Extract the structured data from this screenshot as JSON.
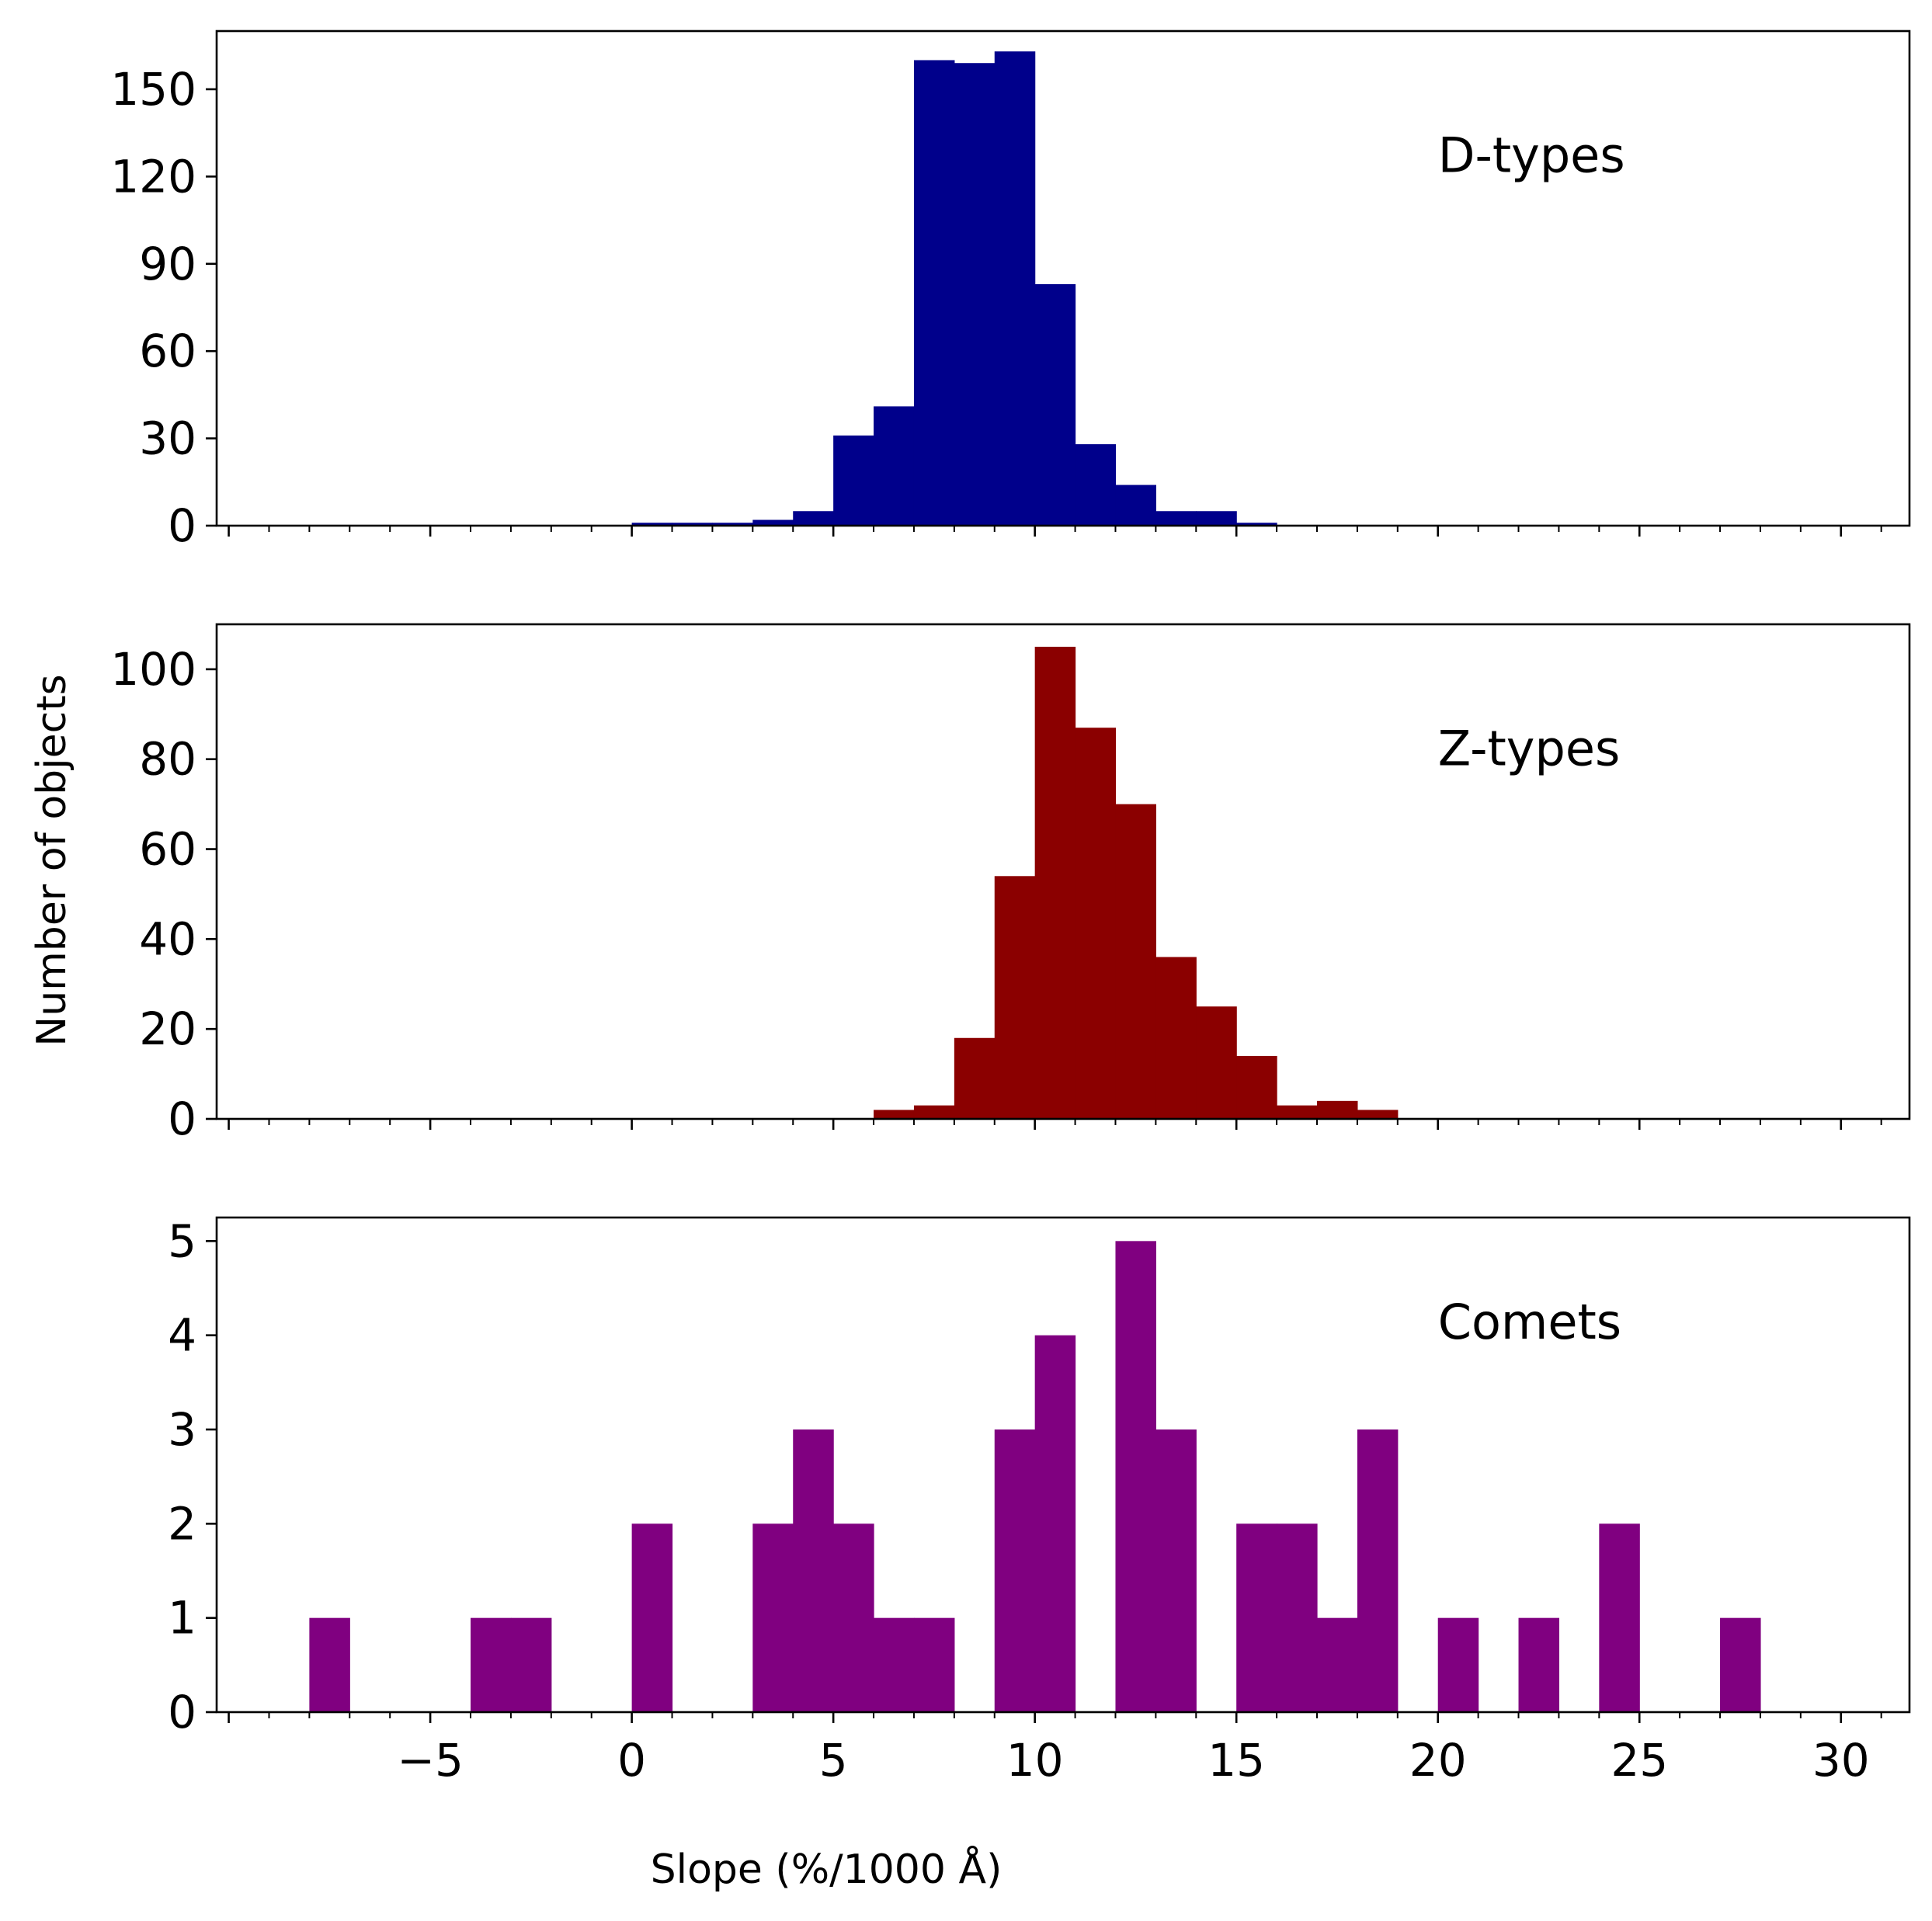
{
  "figure": {
    "ylabel": "Number of objects",
    "xlabel": "Slope (%/1000 Å)"
  },
  "chart_data": [
    {
      "type": "bar",
      "title": "D-types",
      "label": "D-types",
      "color": "#00008b",
      "xlim": [
        -10.3,
        31.7
      ],
      "ylim": [
        0,
        170
      ],
      "yticks": [
        0,
        30,
        60,
        90,
        120,
        150
      ],
      "ytick_labels": [
        "0",
        "30",
        "60",
        "90",
        "120",
        "150"
      ],
      "bins": [
        {
          "x0": 0,
          "x1": 1,
          "count": 1
        },
        {
          "x0": 1,
          "x1": 2,
          "count": 1
        },
        {
          "x0": 2,
          "x1": 3,
          "count": 1
        },
        {
          "x0": 3,
          "x1": 4,
          "count": 2
        },
        {
          "x0": 4,
          "x1": 5,
          "count": 5
        },
        {
          "x0": 5,
          "x1": 6,
          "count": 31
        },
        {
          "x0": 6,
          "x1": 7,
          "count": 41
        },
        {
          "x0": 7,
          "x1": 8,
          "count": 160
        },
        {
          "x0": 8,
          "x1": 9,
          "count": 159
        },
        {
          "x0": 9,
          "x1": 10,
          "count": 163
        },
        {
          "x0": 10,
          "x1": 11,
          "count": 83
        },
        {
          "x0": 11,
          "x1": 12,
          "count": 28
        },
        {
          "x0": 12,
          "x1": 13,
          "count": 14
        },
        {
          "x0": 13,
          "x1": 14,
          "count": 5
        },
        {
          "x0": 14,
          "x1": 15,
          "count": 5
        },
        {
          "x0": 15,
          "x1": 16,
          "count": 1
        }
      ]
    },
    {
      "type": "bar",
      "title": "Z-types",
      "label": "Z-types",
      "color": "#8b0000",
      "xlim": [
        -10.3,
        31.7
      ],
      "ylim": [
        0,
        110
      ],
      "yticks": [
        0,
        20,
        40,
        60,
        80,
        100
      ],
      "ytick_labels": [
        "0",
        "20",
        "40",
        "60",
        "80",
        "100"
      ],
      "bins": [
        {
          "x0": 6,
          "x1": 7,
          "count": 2
        },
        {
          "x0": 7,
          "x1": 8,
          "count": 3
        },
        {
          "x0": 8,
          "x1": 9,
          "count": 18
        },
        {
          "x0": 9,
          "x1": 10,
          "count": 54
        },
        {
          "x0": 10,
          "x1": 11,
          "count": 105
        },
        {
          "x0": 11,
          "x1": 12,
          "count": 87
        },
        {
          "x0": 12,
          "x1": 13,
          "count": 70
        },
        {
          "x0": 13,
          "x1": 14,
          "count": 36
        },
        {
          "x0": 14,
          "x1": 15,
          "count": 25
        },
        {
          "x0": 15,
          "x1": 16,
          "count": 14
        },
        {
          "x0": 16,
          "x1": 17,
          "count": 3
        },
        {
          "x0": 17,
          "x1": 18,
          "count": 4
        },
        {
          "x0": 18,
          "x1": 19,
          "count": 2
        }
      ]
    },
    {
      "type": "bar",
      "title": "Comets",
      "label": "Comets",
      "color": "#800080",
      "xlim": [
        -10.3,
        31.7
      ],
      "ylim": [
        0,
        5.25
      ],
      "yticks": [
        0,
        1,
        2,
        3,
        4,
        5
      ],
      "ytick_labels": [
        "0",
        "1",
        "2",
        "3",
        "4",
        "5"
      ],
      "xticks": [
        -5,
        0,
        5,
        10,
        15,
        20,
        25,
        30
      ],
      "xtick_labels": [
        "−5",
        "0",
        "5",
        "10",
        "15",
        "20",
        "25",
        "30"
      ],
      "bins": [
        {
          "x0": -8,
          "x1": -7,
          "count": 1
        },
        {
          "x0": -4,
          "x1": -3,
          "count": 1
        },
        {
          "x0": -3,
          "x1": -2,
          "count": 1
        },
        {
          "x0": 0,
          "x1": 1,
          "count": 2
        },
        {
          "x0": 3,
          "x1": 4,
          "count": 2
        },
        {
          "x0": 4,
          "x1": 5,
          "count": 3
        },
        {
          "x0": 5,
          "x1": 6,
          "count": 2
        },
        {
          "x0": 6,
          "x1": 7,
          "count": 1
        },
        {
          "x0": 7,
          "x1": 8,
          "count": 1
        },
        {
          "x0": 9,
          "x1": 10,
          "count": 3
        },
        {
          "x0": 10,
          "x1": 11,
          "count": 4
        },
        {
          "x0": 12,
          "x1": 13,
          "count": 5
        },
        {
          "x0": 13,
          "x1": 14,
          "count": 3
        },
        {
          "x0": 15,
          "x1": 16,
          "count": 2
        },
        {
          "x0": 16,
          "x1": 17,
          "count": 2
        },
        {
          "x0": 17,
          "x1": 18,
          "count": 1
        },
        {
          "x0": 18,
          "x1": 19,
          "count": 3
        },
        {
          "x0": 20,
          "x1": 21,
          "count": 1
        },
        {
          "x0": 22,
          "x1": 23,
          "count": 1
        },
        {
          "x0": 24,
          "x1": 25,
          "count": 2
        },
        {
          "x0": 27,
          "x1": 28,
          "count": 1
        }
      ]
    }
  ]
}
